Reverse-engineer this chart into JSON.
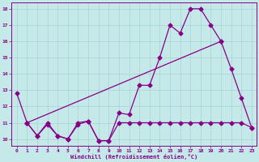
{
  "xlabel": "Windchill (Refroidissement éolien,°C)",
  "xlim_min": -0.5,
  "xlim_max": 23.5,
  "ylim_min": 9.6,
  "ylim_max": 18.4,
  "yticks": [
    10,
    11,
    12,
    13,
    14,
    15,
    16,
    17,
    18
  ],
  "xticks": [
    0,
    1,
    2,
    3,
    4,
    5,
    6,
    7,
    8,
    9,
    10,
    11,
    12,
    13,
    14,
    15,
    16,
    17,
    18,
    19,
    20,
    21,
    22,
    23
  ],
  "bg_color": "#c5e8e8",
  "grid_color": "#a8d4d4",
  "line_color": "#880088",
  "line1_x": [
    0,
    1,
    2,
    3,
    4,
    5,
    6,
    7,
    8,
    9,
    10,
    11,
    12,
    13,
    14,
    15,
    16,
    17,
    18,
    19,
    20,
    21,
    22,
    23
  ],
  "line1_y": [
    12.8,
    11.0,
    10.2,
    11.0,
    10.2,
    10.0,
    11.0,
    11.1,
    9.9,
    9.9,
    11.6,
    11.5,
    13.3,
    13.3,
    15.0,
    17.0,
    16.5,
    18.0,
    18.0,
    17.0,
    16.0,
    14.3,
    12.5,
    10.7
  ],
  "line2_x": [
    1,
    2,
    3,
    4,
    5,
    6,
    7,
    8,
    9,
    10,
    11,
    12,
    13,
    14,
    15,
    16,
    17,
    18,
    19,
    20,
    21,
    22,
    23
  ],
  "line2_y": [
    11.0,
    10.2,
    10.9,
    10.2,
    10.0,
    10.9,
    11.1,
    9.9,
    9.9,
    11.0,
    11.0,
    11.0,
    11.0,
    11.0,
    11.0,
    11.0,
    11.0,
    11.0,
    11.0,
    11.0,
    11.0,
    11.0,
    10.7
  ],
  "line3_x": [
    1,
    20
  ],
  "line3_y": [
    11.0,
    16.0
  ]
}
